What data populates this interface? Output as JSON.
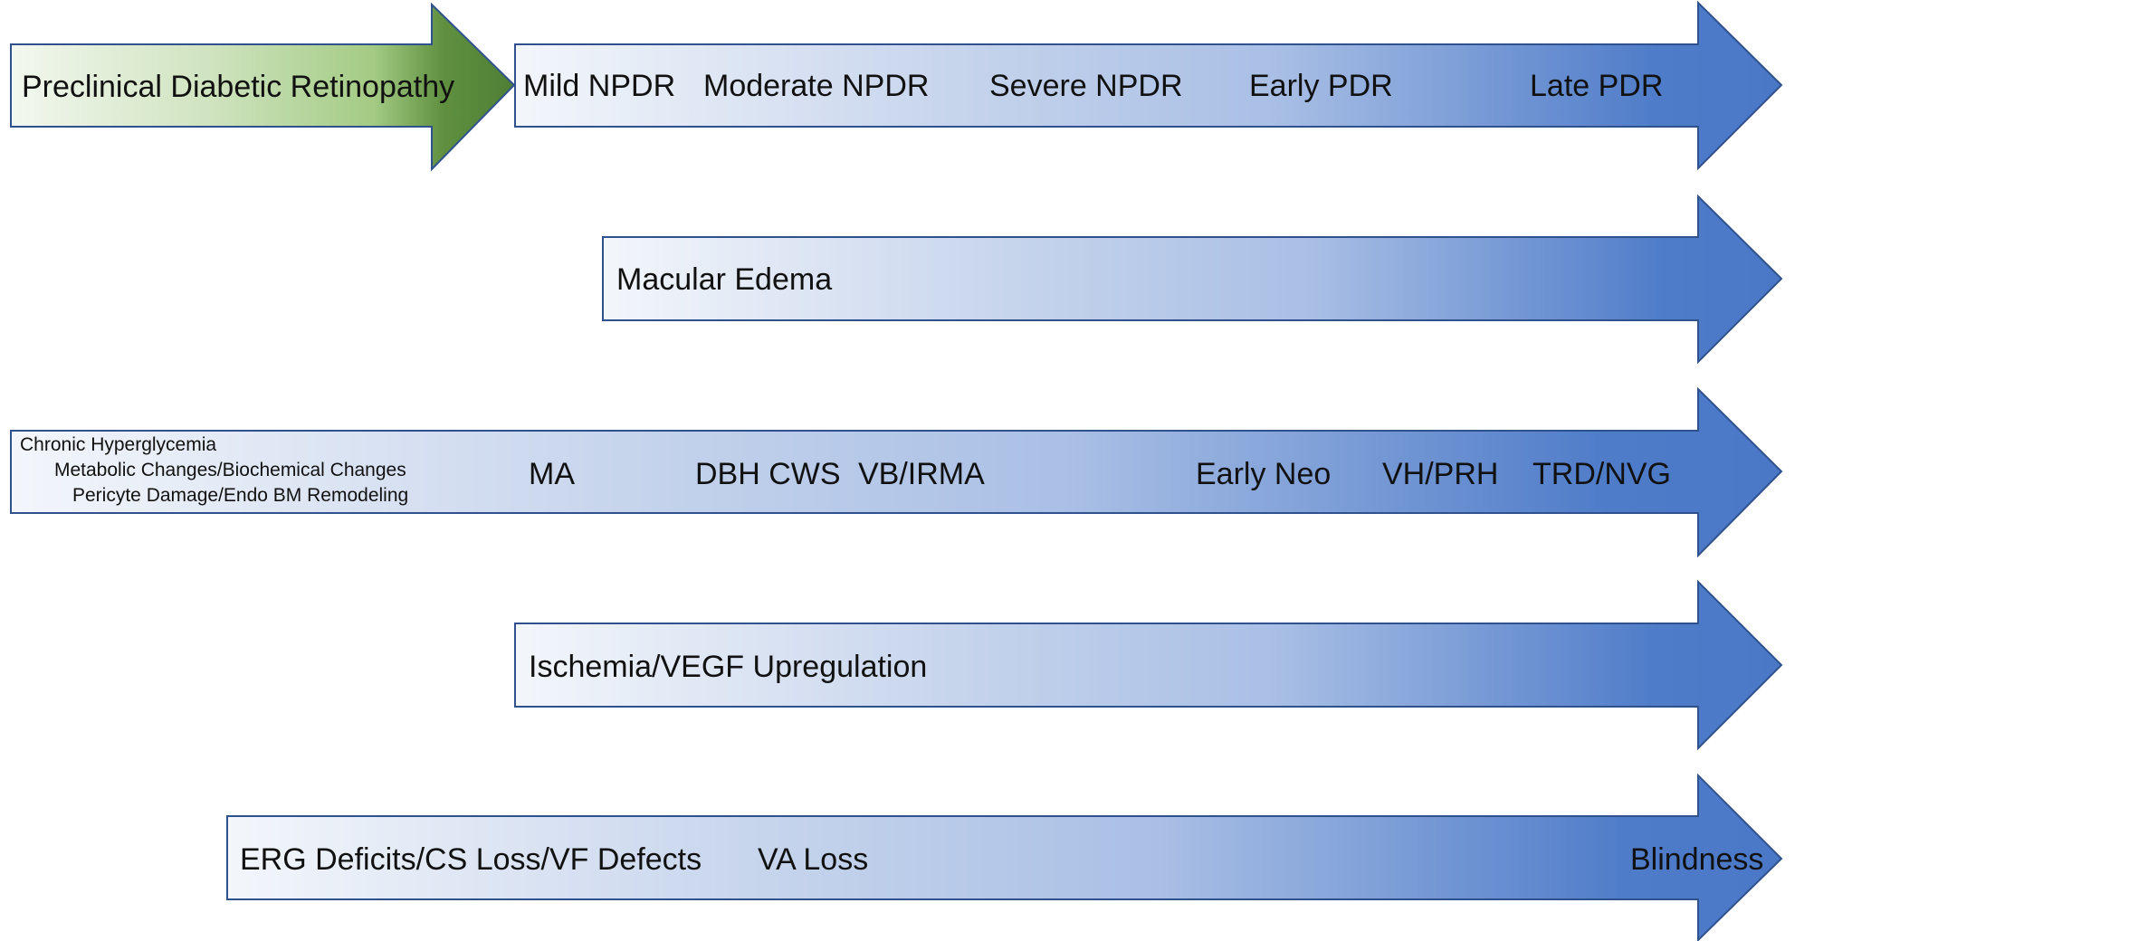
{
  "colors": {
    "outline": "#2f528f",
    "blue_start": "#f3f6fb",
    "blue_end": "#4f7cc9",
    "green_start": "#f3f8ef",
    "green_end": "#4f7f35"
  },
  "diagram": {
    "row1": {
      "preclinical": {
        "label": "Preclinical Diabetic Retinopathy"
      },
      "stages": {
        "mild_npdr": "Mild NPDR",
        "moderate_npdr": "Moderate NPDR",
        "severe_npdr": "Severe NPDR",
        "early_pdr": "Early PDR",
        "late_pdr": "Late PDR"
      }
    },
    "row2": {
      "label": "Macular Edema"
    },
    "row3": {
      "small_lines": {
        "line1": "Chronic Hyperglycemia",
        "line2": "Metabolic Changes/Biochemical Changes",
        "line3": "Pericyte Damage/Endo BM Remodeling"
      },
      "findings": {
        "ma": "MA",
        "dbh_cws": "DBH CWS",
        "vb_irma": "VB/IRMA",
        "early_neo": "Early Neo",
        "vh_prh": "VH/PRH",
        "trd_nvg": "TRD/NVG"
      }
    },
    "row4": {
      "label": "Ischemia/VEGF Upregulation"
    },
    "row5": {
      "erg": "ERG Deficits/CS Loss/VF Defects",
      "va_loss": "VA Loss",
      "blindness": "Blindness"
    }
  }
}
